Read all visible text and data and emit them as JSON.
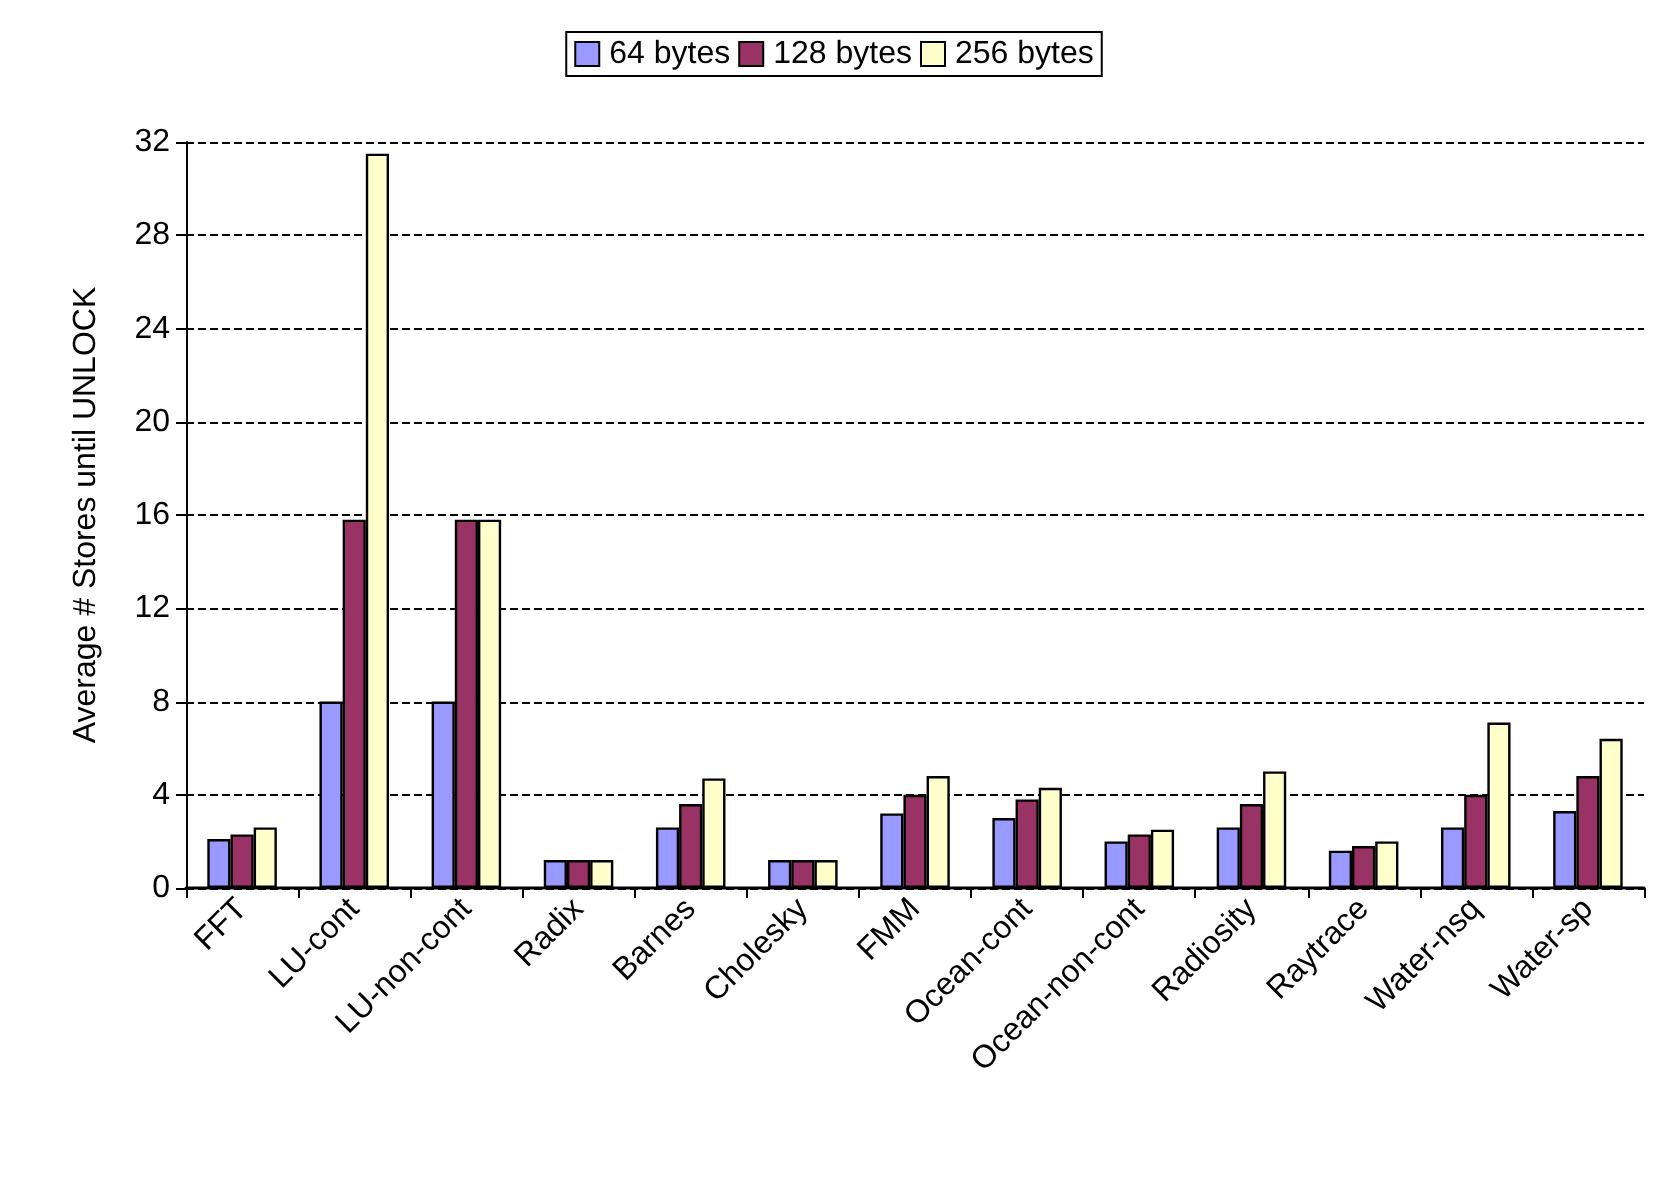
{
  "chart_data": {
    "type": "bar",
    "ylabel": "Average # Stores until UNLOCK",
    "categories": [
      "FFT",
      "LU-cont",
      "LU-non-cont",
      "Radix",
      "Barnes",
      "Cholesky",
      "FMM",
      "Ocean-cont",
      "Ocean-non-cont",
      "Radiosity",
      "Raytrace",
      "Water-nsq",
      "Water-sp"
    ],
    "series": [
      {
        "name": "64 bytes",
        "color": "#9999ff",
        "values": [
          2.1,
          8,
          8,
          1.2,
          2.6,
          1.2,
          3.2,
          3.0,
          2.0,
          2.6,
          1.6,
          2.6,
          3.3
        ]
      },
      {
        "name": "128 bytes",
        "color": "#993366",
        "values": [
          2.3,
          15.8,
          15.8,
          1.2,
          3.6,
          1.2,
          4.0,
          3.8,
          2.3,
          3.6,
          1.8,
          4.0,
          4.8
        ]
      },
      {
        "name": "256 bytes",
        "color": "#ffffcc",
        "values": [
          2.6,
          31.5,
          15.8,
          1.2,
          4.7,
          1.2,
          4.8,
          4.3,
          2.5,
          5.0,
          2.0,
          7.1,
          6.4
        ]
      }
    ],
    "ylim": [
      0,
      32
    ],
    "yticks": [
      0,
      4,
      8,
      12,
      16,
      20,
      24,
      28,
      32
    ],
    "grid": "y",
    "legend": "top"
  }
}
